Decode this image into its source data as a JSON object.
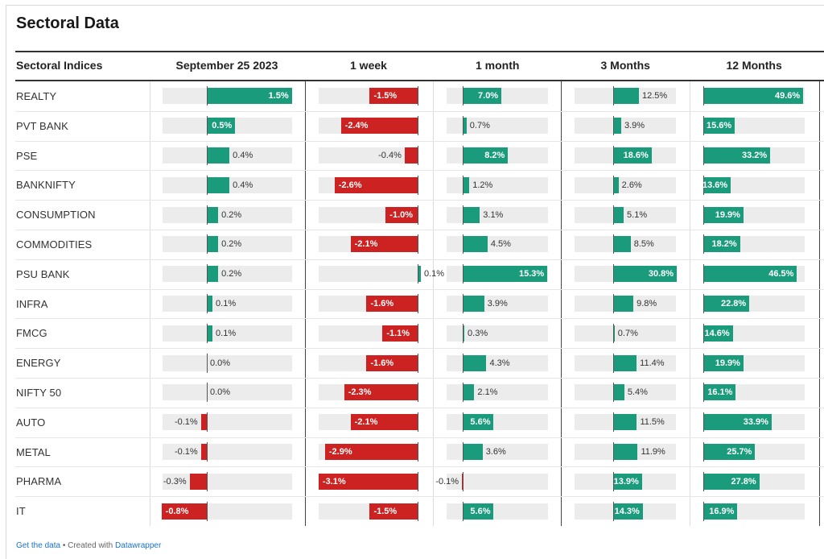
{
  "title": "Sectoral Data",
  "footer": {
    "get_data": "Get the data",
    "separator": " • Created with ",
    "tool": "Datawrapper"
  },
  "colors": {
    "positive": "#1a9b7c",
    "negative": "#cc2222",
    "track": "#ececec"
  },
  "chart_data": {
    "type": "table",
    "row_header": "Sectoral Indices",
    "columns": [
      "September 25 2023",
      "1 week",
      "1 month",
      "3 Months",
      "12 Months"
    ],
    "unit": "%",
    "rows": [
      {
        "name": "REALTY",
        "labels": [
          "1.5%",
          "-1.5%",
          "7.0%",
          "12.5%",
          "49.6%"
        ],
        "values": [
          1.5,
          -1.5,
          7.0,
          12.5,
          49.6
        ]
      },
      {
        "name": "PVT BANK",
        "labels": [
          "0.5%",
          "-2.4%",
          "0.7%",
          "3.9%",
          "15.6%"
        ],
        "values": [
          0.5,
          -2.4,
          0.7,
          3.9,
          15.6
        ]
      },
      {
        "name": "PSE",
        "labels": [
          "0.4%",
          "-0.4%",
          "8.2%",
          "18.6%",
          "33.2%"
        ],
        "values": [
          0.4,
          -0.4,
          8.2,
          18.6,
          33.2
        ]
      },
      {
        "name": "BANKNIFTY",
        "labels": [
          "0.4%",
          "-2.6%",
          "1.2%",
          "2.6%",
          "13.6%"
        ],
        "values": [
          0.4,
          -2.6,
          1.2,
          2.6,
          13.6
        ]
      },
      {
        "name": "CONSUMPTION",
        "labels": [
          "0.2%",
          "-1.0%",
          "3.1%",
          "5.1%",
          "19.9%"
        ],
        "values": [
          0.2,
          -1.0,
          3.1,
          5.1,
          19.9
        ]
      },
      {
        "name": "COMMODITIES",
        "labels": [
          "0.2%",
          "-2.1%",
          "4.5%",
          "8.5%",
          "18.2%"
        ],
        "values": [
          0.2,
          -2.1,
          4.5,
          8.5,
          18.2
        ]
      },
      {
        "name": "PSU BANK",
        "labels": [
          "0.2%",
          "0.1%",
          "15.3%",
          "30.8%",
          "46.5%"
        ],
        "values": [
          0.2,
          0.1,
          15.3,
          30.8,
          46.5
        ]
      },
      {
        "name": "INFRA",
        "labels": [
          "0.1%",
          "-1.6%",
          "3.9%",
          "9.8%",
          "22.8%"
        ],
        "values": [
          0.1,
          -1.6,
          3.9,
          9.8,
          22.8
        ]
      },
      {
        "name": "FMCG",
        "labels": [
          "0.1%",
          "-1.1%",
          "0.3%",
          "0.7%",
          "14.6%"
        ],
        "values": [
          0.1,
          -1.1,
          0.3,
          0.7,
          14.6
        ]
      },
      {
        "name": "ENERGY",
        "labels": [
          "0.0%",
          "-1.6%",
          "4.3%",
          "11.4%",
          "19.9%"
        ],
        "values": [
          0.0,
          -1.6,
          4.3,
          11.4,
          19.9
        ]
      },
      {
        "name": "NIFTY 50",
        "labels": [
          "0.0%",
          "-2.3%",
          "2.1%",
          "5.4%",
          "16.1%"
        ],
        "values": [
          0.0,
          -2.3,
          2.1,
          5.4,
          16.1
        ]
      },
      {
        "name": "AUTO",
        "labels": [
          "-0.1%",
          "-2.1%",
          "5.6%",
          "11.5%",
          "33.9%"
        ],
        "values": [
          -0.1,
          -2.1,
          5.6,
          11.5,
          33.9
        ]
      },
      {
        "name": "METAL",
        "labels": [
          "-0.1%",
          "-2.9%",
          "3.6%",
          "11.9%",
          "25.7%"
        ],
        "values": [
          -0.1,
          -2.9,
          3.6,
          11.9,
          25.7
        ]
      },
      {
        "name": "PHARMA",
        "labels": [
          "-0.3%",
          "-3.1%",
          "-0.1%",
          "13.9%",
          "27.8%"
        ],
        "values": [
          -0.3,
          -3.1,
          -0.1,
          13.9,
          27.8
        ]
      },
      {
        "name": "IT",
        "labels": [
          "-0.8%",
          "-1.5%",
          "5.6%",
          "14.3%",
          "16.9%"
        ],
        "values": [
          -0.8,
          -1.5,
          5.6,
          14.3,
          16.9
        ]
      }
    ]
  }
}
